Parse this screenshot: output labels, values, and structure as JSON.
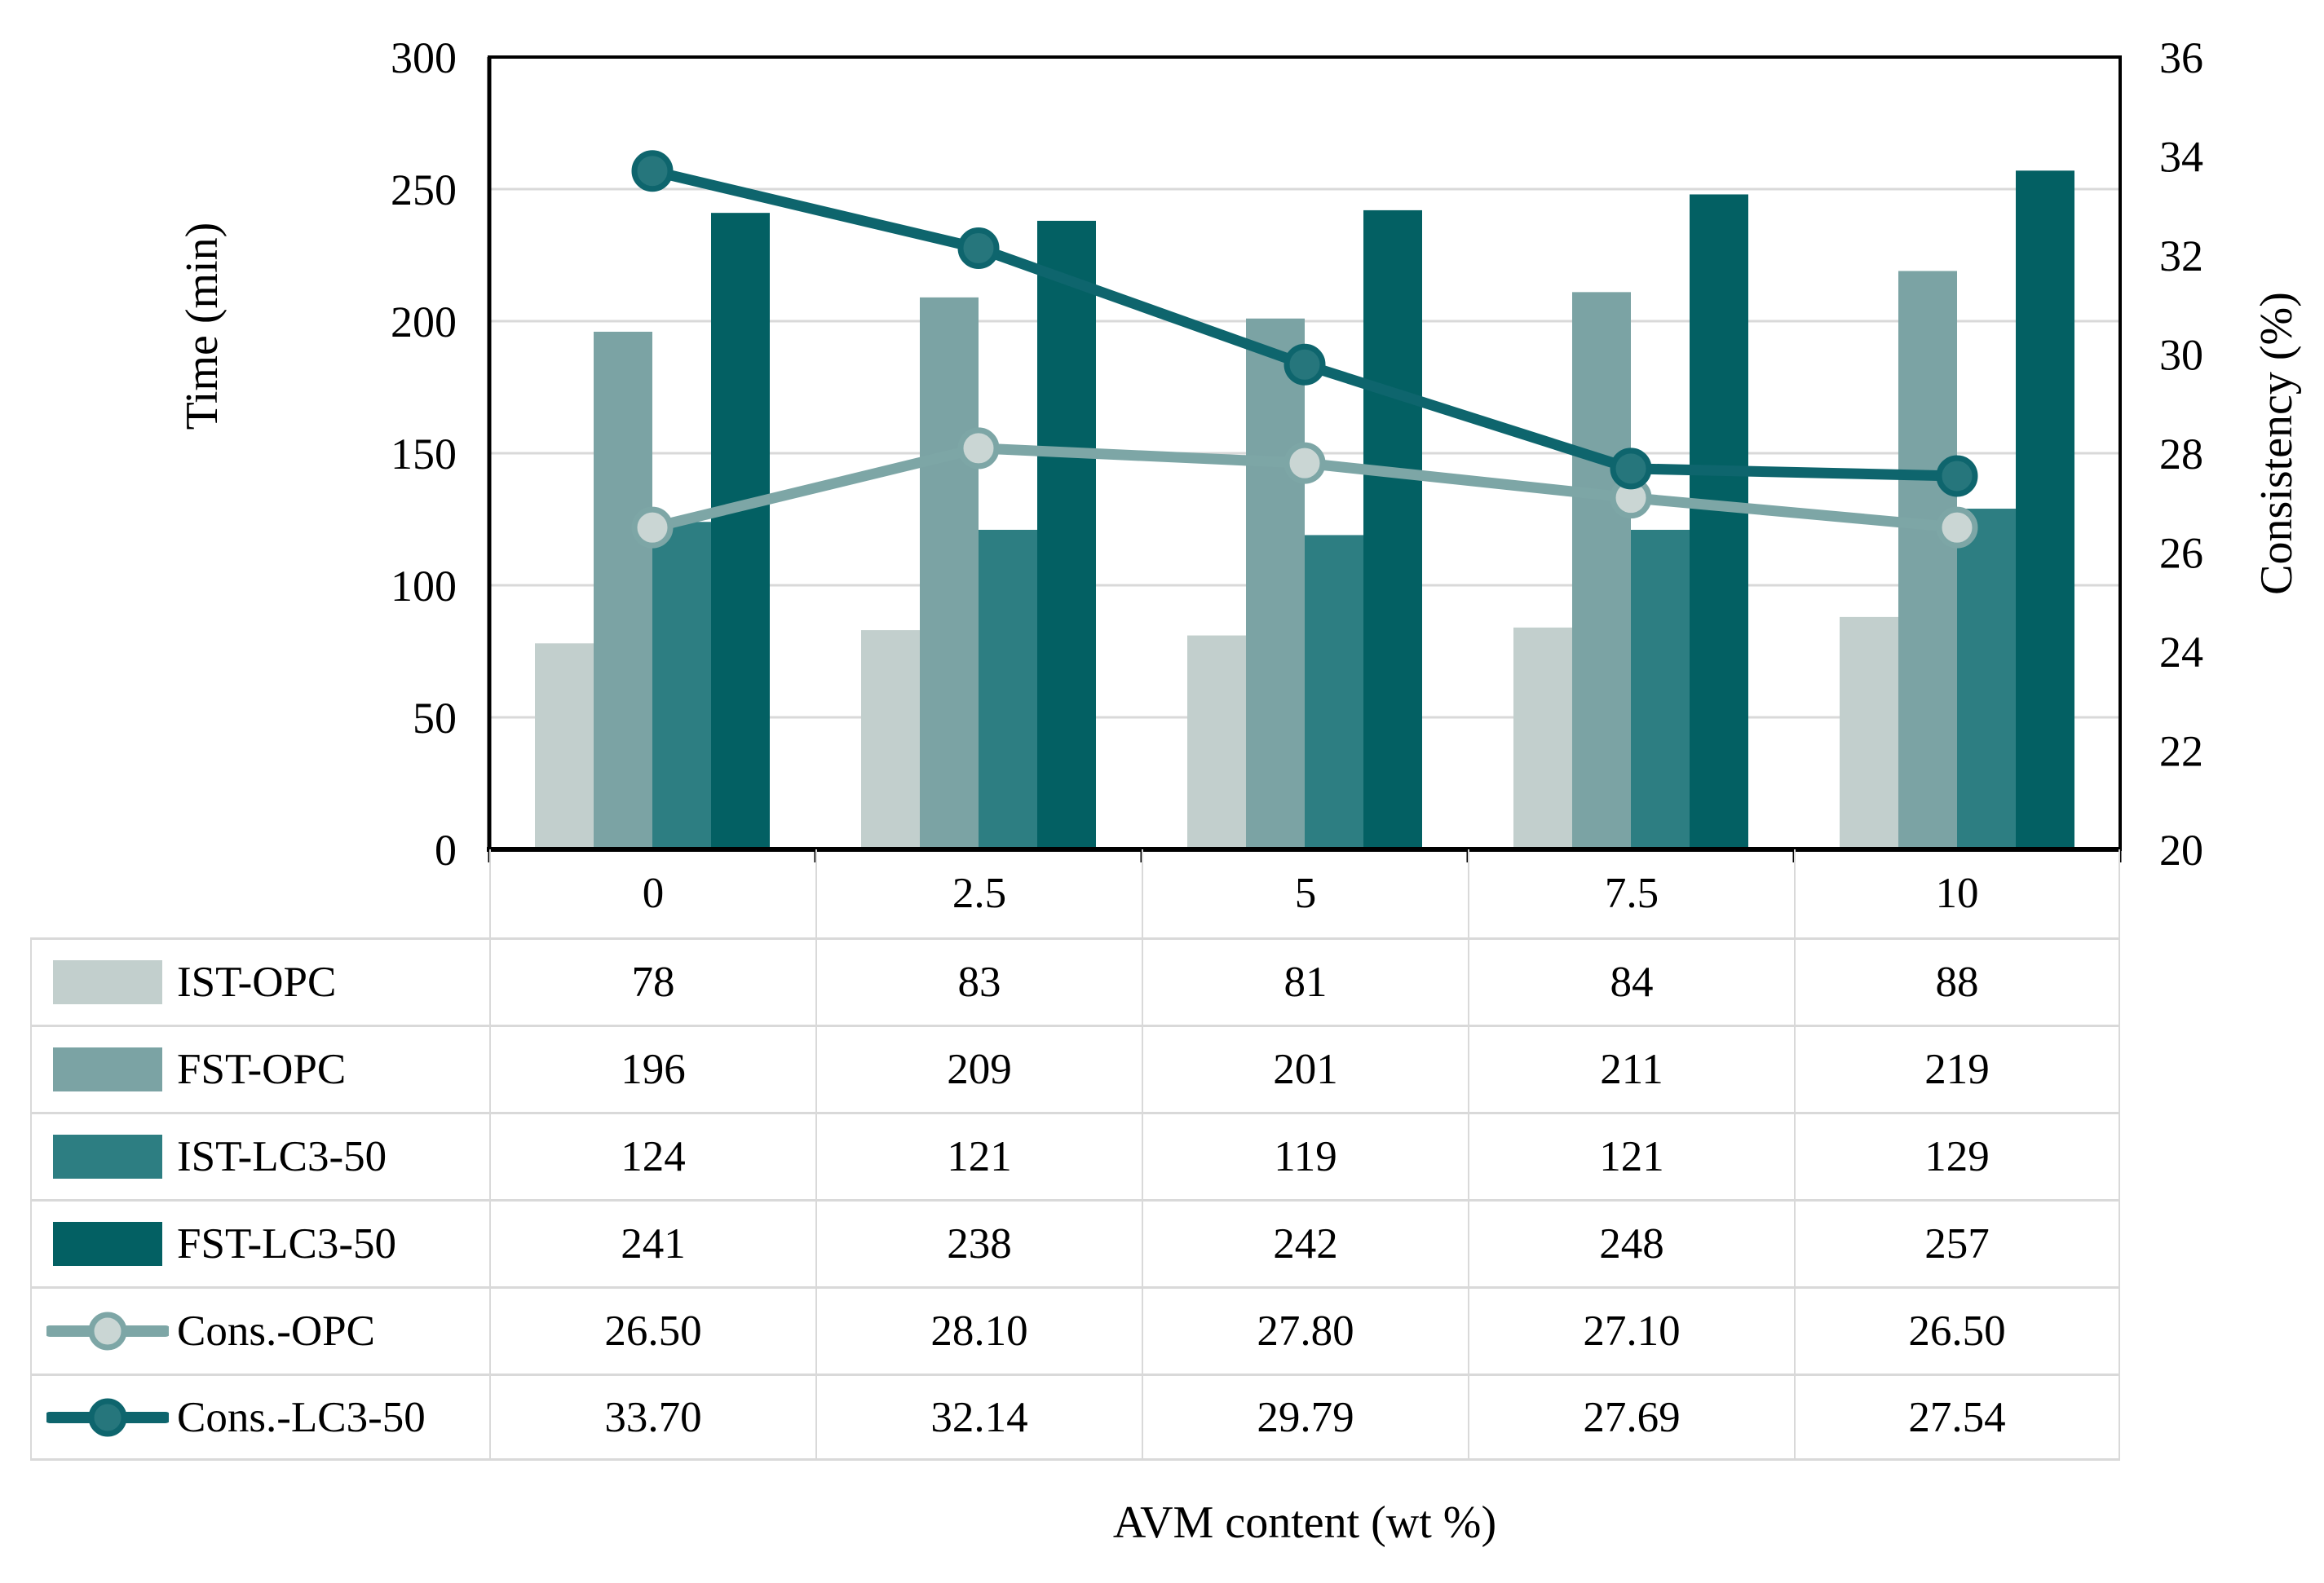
{
  "chart_data": {
    "type": "bar+line combo",
    "categories": [
      "0",
      "2.5",
      "5",
      "7.5",
      "10"
    ],
    "bar_series": [
      {
        "name": "IST-OPC",
        "values": [
          78,
          83,
          81,
          84,
          88
        ],
        "display": [
          "78",
          "83",
          "81",
          "84",
          "88"
        ],
        "color": "#c2cfcd"
      },
      {
        "name": "FST-OPC",
        "values": [
          196,
          209,
          201,
          211,
          219
        ],
        "display": [
          "196",
          "209",
          "201",
          "211",
          "219"
        ],
        "color": "#7ba3a4"
      },
      {
        "name": "IST-LC3-50",
        "values": [
          124,
          121,
          119,
          121,
          129
        ],
        "display": [
          "124",
          "121",
          "119",
          "121",
          "129"
        ],
        "color": "#2d7e82"
      },
      {
        "name": "FST-LC3-50",
        "values": [
          241,
          238,
          242,
          248,
          257
        ],
        "display": [
          "241",
          "238",
          "242",
          "248",
          "257"
        ],
        "color": "#036063"
      }
    ],
    "line_series": [
      {
        "name": "Cons.-OPC",
        "values": [
          26.5,
          28.1,
          27.8,
          27.1,
          26.5
        ],
        "display": [
          "26.50",
          "28.10",
          "27.80",
          "27.10",
          "26.50"
        ],
        "color": "#7da6a6",
        "marker_fill": "#cad6d4"
      },
      {
        "name": "Cons.-LC3-50",
        "values": [
          33.7,
          32.14,
          29.79,
          27.69,
          27.54
        ],
        "display": [
          "33.70",
          "32.14",
          "29.79",
          "27.69",
          "27.54"
        ],
        "color": "#0e656d",
        "marker_fill": "#26767c"
      }
    ],
    "left_axis": {
      "title": "Time (min)",
      "min": 0,
      "max": 300,
      "step": 50,
      "ticks": [
        "300",
        "250",
        "200",
        "150",
        "100",
        "50",
        "0"
      ]
    },
    "right_axis": {
      "title": "Consistency (%)",
      "min": 20,
      "max": 36,
      "step": 2,
      "ticks": [
        "36",
        "34",
        "32",
        "30",
        "28",
        "26",
        "24",
        "22",
        "20"
      ]
    },
    "xlabel": "AVM content (wt %)",
    "grid": true,
    "legend_position": "table-left"
  },
  "colors": {
    "grid": "#d9d9d9",
    "axis": "#000000",
    "table_border": "#d9d9d9",
    "background": "#ffffff"
  }
}
